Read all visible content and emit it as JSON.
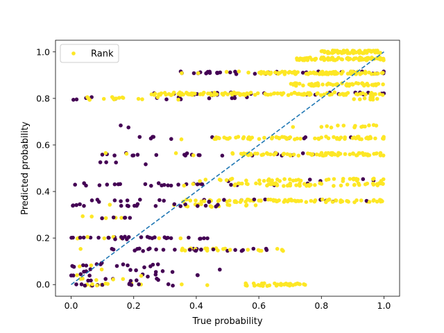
{
  "chart_data": {
    "type": "scatter",
    "title": "",
    "xlabel": "True probability",
    "ylabel": "Predicted probability",
    "xlim": [
      -0.05,
      1.05
    ],
    "ylim": [
      -0.05,
      1.05
    ],
    "x_ticks": [
      "0.0",
      "0.2",
      "0.4",
      "0.6",
      "0.8",
      "1.0"
    ],
    "y_ticks": [
      "0.0",
      "0.2",
      "0.4",
      "0.6",
      "0.8",
      "1.0"
    ],
    "grid": false,
    "legend": {
      "position": "top-left",
      "entries": [
        "Rank"
      ]
    },
    "colors": {
      "purple": "#440154",
      "yellow": "#fde725",
      "diagonal": "#1f77b4"
    },
    "reference_line": {
      "style": "dashed",
      "from": [
        0,
        0
      ],
      "to": [
        1,
        1
      ]
    },
    "series": [
      {
        "name": "Rank",
        "bands": [
          {
            "y": 0.0,
            "ranges": [
              [
                0.0,
                0.35,
                0.9,
                0.04
              ],
              [
                0.0,
                0.12,
                0.1,
                0.08
              ],
              [
                0.35,
                0.55,
                0.2,
                0.01
              ],
              [
                0.55,
                0.75,
                0.0,
                0.2
              ]
            ]
          },
          {
            "y": 0.02,
            "ranges": [
              [
                0.0,
                0.3,
                0.9,
                0.03
              ],
              [
                0.0,
                0.2,
                0.2,
                0.03
              ]
            ]
          },
          {
            "y": 0.04,
            "ranges": [
              [
                0.0,
                0.33,
                0.92,
                0.03
              ],
              [
                0.33,
                0.55,
                0.5,
                0.01
              ]
            ]
          },
          {
            "y": 0.06,
            "ranges": [
              [
                0.0,
                0.3,
                0.9,
                0.03
              ],
              [
                0.3,
                0.5,
                0.6,
                0.01
              ]
            ]
          },
          {
            "y": 0.08,
            "ranges": [
              [
                0.0,
                0.32,
                0.92,
                0.025
              ],
              [
                0.0,
                0.3,
                0.15,
                0.01
              ]
            ]
          },
          {
            "y": 0.09,
            "ranges": [
              [
                0.0,
                0.28,
                0.9,
                0.025
              ]
            ]
          },
          {
            "y": 0.15,
            "ranges": [
              [
                0.0,
                0.55,
                0.92,
                0.04
              ],
              [
                0.35,
                0.68,
                0.2,
                0.1
              ]
            ]
          },
          {
            "y": 0.2,
            "ranges": [
              [
                0.0,
                0.45,
                0.9,
                0.08
              ],
              [
                0.0,
                0.3,
                0.1,
                0.02
              ]
            ]
          },
          {
            "y": 0.29,
            "ranges": [
              [
                0.0,
                0.2,
                0.6,
                0.03
              ],
              [
                0.0,
                0.15,
                0.3,
                0.04
              ]
            ]
          },
          {
            "y": 0.34,
            "ranges": [
              [
                0.0,
                0.55,
                0.92,
                0.04
              ],
              [
                0.25,
                0.6,
                0.0,
                0.05
              ]
            ]
          },
          {
            "y": 0.36,
            "ranges": [
              [
                0.05,
                0.55,
                0.85,
                0.03
              ],
              [
                0.35,
                1.0,
                0.15,
                0.12
              ],
              [
                0.6,
                1.0,
                0.0,
                0.05
              ]
            ]
          },
          {
            "y": 0.43,
            "ranges": [
              [
                0.0,
                0.55,
                0.92,
                0.05
              ],
              [
                0.5,
                1.0,
                0.1,
                0.12
              ]
            ]
          },
          {
            "y": 0.45,
            "ranges": [
              [
                0.4,
                1.0,
                0.2,
                0.08
              ]
            ]
          },
          {
            "y": 0.5,
            "ranges": [
              [
                0.98,
                1.0,
                0.0,
                0.005
              ]
            ]
          },
          {
            "y": 0.52,
            "ranges": [
              [
                0.0,
                0.4,
                1.0,
                0.012
              ]
            ]
          },
          {
            "y": 0.56,
            "ranges": [
              [
                0.05,
                0.7,
                0.85,
                0.04
              ],
              [
                0.5,
                1.0,
                0.05,
                0.15
              ],
              [
                0.9,
                1.0,
                0.0,
                0.12
              ]
            ]
          },
          {
            "y": 0.63,
            "ranges": [
              [
                0.2,
                0.75,
                0.7,
                0.03
              ],
              [
                0.45,
                1.0,
                0.05,
                0.12
              ],
              [
                0.9,
                1.0,
                0.0,
                0.1
              ]
            ]
          },
          {
            "y": 0.68,
            "ranges": [
              [
                0.1,
                0.3,
                0.3,
                0.012
              ],
              [
                0.7,
                1.0,
                0.0,
                0.05
              ]
            ]
          },
          {
            "y": 0.72,
            "ranges": [
              [
                0.25,
                0.3,
                1.0,
                0.004
              ]
            ]
          },
          {
            "y": 0.8,
            "ranges": [
              [
                0.0,
                0.6,
                0.85,
                0.03
              ],
              [
                0.05,
                0.35,
                0.0,
                0.05
              ],
              [
                0.9,
                1.0,
                0.0,
                0.1
              ]
            ]
          },
          {
            "y": 0.82,
            "ranges": [
              [
                0.25,
                1.0,
                0.6,
                0.07
              ],
              [
                0.25,
                1.0,
                0.0,
                0.15
              ]
            ]
          },
          {
            "y": 0.86,
            "ranges": [
              [
                0.7,
                1.0,
                0.0,
                0.2
              ]
            ]
          },
          {
            "y": 0.91,
            "ranges": [
              [
                0.35,
                1.0,
                0.8,
                0.07
              ],
              [
                0.6,
                1.0,
                0.0,
                0.25
              ]
            ]
          },
          {
            "y": 0.97,
            "ranges": [
              [
                0.72,
                1.0,
                0.0,
                0.25
              ],
              [
                0.9,
                1.0,
                0.0,
                0.2
              ]
            ]
          },
          {
            "y": 1.0,
            "ranges": [
              [
                0.8,
                1.0,
                0.0,
                0.35
              ]
            ]
          }
        ]
      }
    ]
  }
}
